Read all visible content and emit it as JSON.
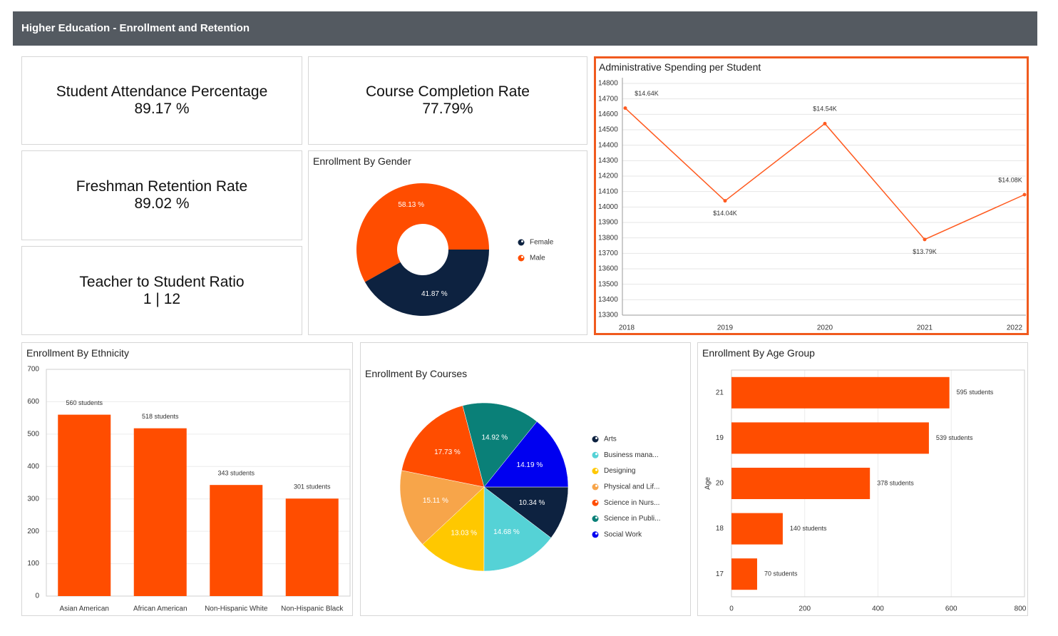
{
  "header": {
    "title": "Higher Education - Enrollment and Retention"
  },
  "kpis": [
    {
      "label": "Student Attendance Percentage",
      "value": "89.17 %"
    },
    {
      "label": "Course Completion Rate",
      "value": "77.79%"
    },
    {
      "label": "Freshman Retention Rate",
      "value": "89.02 %"
    },
    {
      "label": "Teacher to Student Ratio",
      "value": "1 | 12"
    }
  ],
  "chart_data": [
    {
      "type": "line",
      "title": "Administrative Spending per Student",
      "categories": [
        "2018",
        "2019",
        "2020",
        "2021",
        "2022"
      ],
      "values": [
        14640,
        14040,
        14540,
        13790,
        14080
      ],
      "value_labels": [
        "$14.64K",
        "$14.04K",
        "$14.54K",
        "$13.79K",
        "$14.08K"
      ],
      "color": "#ff5a1f",
      "ylim": [
        13300,
        14800
      ],
      "yticks": [
        13300,
        13400,
        13500,
        13600,
        13700,
        13800,
        13900,
        14000,
        14100,
        14200,
        14300,
        14400,
        14500,
        14600,
        14700,
        14800
      ],
      "grid": true
    },
    {
      "type": "donut",
      "title": "Enrollment By Gender",
      "categories": [
        "Female",
        "Male"
      ],
      "values": [
        41.87,
        58.13
      ],
      "value_labels": [
        "41.87 %",
        "58.13 %"
      ],
      "colors": [
        "#0d2240",
        "#ff4d00"
      ]
    },
    {
      "type": "bar",
      "title": "Enrollment By Ethnicity",
      "categories": [
        "Asian American",
        "African American",
        "Non-Hispanic White",
        "Non-Hispanic Black"
      ],
      "values": [
        560,
        518,
        343,
        301
      ],
      "value_labels": [
        "560 students",
        "518 students",
        "343 students",
        "301 students"
      ],
      "color": "#ff4d00",
      "ylim": [
        0,
        700
      ],
      "yticks": [
        0,
        100,
        200,
        300,
        400,
        500,
        600,
        700
      ],
      "grid": true
    },
    {
      "type": "pie",
      "title": "Enrollment By Courses",
      "categories": [
        "Arts",
        "Business mana...",
        "Designing",
        "Physical and Lif...",
        "Science in Nurs...",
        "Science in Publi...",
        "Social Work"
      ],
      "values": [
        10.34,
        14.68,
        13.03,
        15.11,
        17.73,
        14.92,
        14.19
      ],
      "value_labels": [
        "10.34 %",
        "14.68 %",
        "13.03 %",
        "15.11 %",
        "17.73 %",
        "14.92 %",
        "14.19 %"
      ],
      "colors": [
        "#0d2240",
        "#55d2d6",
        "#ffc800",
        "#f7a54a",
        "#ff4d00",
        "#0a8078",
        "#0000f0"
      ]
    },
    {
      "type": "hbar",
      "title": "Enrollment By Age Group",
      "y_label": "Age",
      "categories": [
        "21",
        "19",
        "20",
        "18",
        "17"
      ],
      "values": [
        595,
        539,
        378,
        140,
        70
      ],
      "value_labels": [
        "595 students",
        "539 students",
        "378 students",
        "140 students",
        "70 students"
      ],
      "color": "#ff4d00",
      "xlim": [
        0,
        800
      ],
      "xticks": [
        0,
        200,
        400,
        600,
        800
      ],
      "grid": true
    }
  ]
}
